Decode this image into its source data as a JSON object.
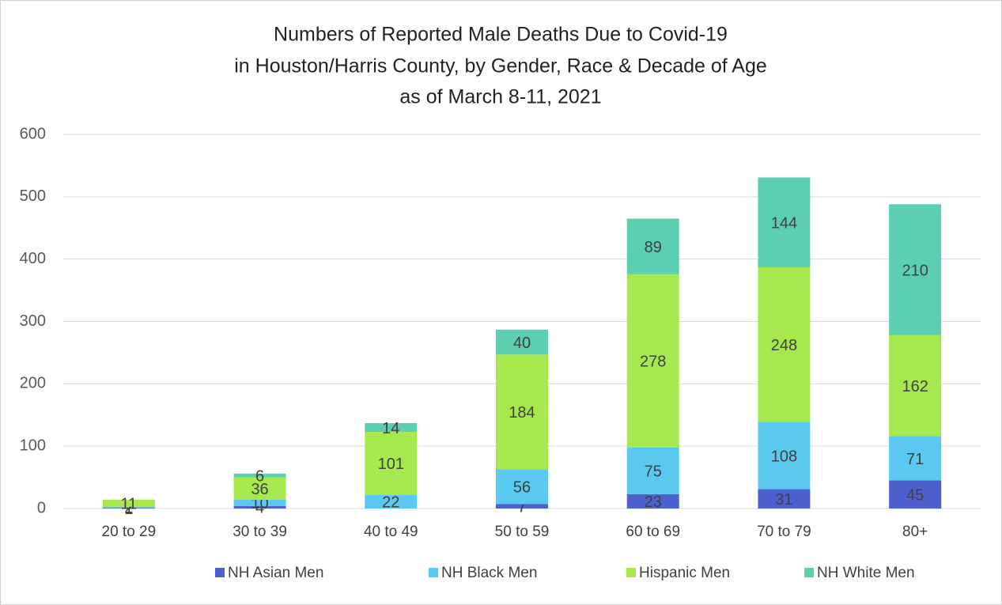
{
  "chart_data": {
    "type": "stacked_bar",
    "title": [
      "Numbers of Reported Male Deaths Due to Covid-19",
      "in Houston/Harris County, by Gender, Race & Decade of Age",
      "as of March 8-11, 2021"
    ],
    "categories": [
      "20 to 29",
      "30 to 39",
      "40 to 49",
      "50 to 59",
      "60 to 69",
      "70 to 79",
      "80+"
    ],
    "series": [
      {
        "name": "NH Asian Men",
        "color": "#4e5fd0",
        "values": [
          1,
          4,
          null,
          7,
          23,
          31,
          45
        ]
      },
      {
        "name": "NH Black Men",
        "color": "#5bc8f0",
        "values": [
          2,
          10,
          22,
          56,
          75,
          108,
          71
        ]
      },
      {
        "name": "Hispanic Men",
        "color": "#a6e84e",
        "values": [
          11,
          36,
          101,
          184,
          278,
          248,
          162
        ]
      },
      {
        "name": "NH White Men",
        "color": "#5ccfb0",
        "values": [
          null,
          6,
          14,
          40,
          89,
          144,
          210
        ]
      }
    ],
    "ylim": [
      0,
      600
    ],
    "yticks": [
      0,
      100,
      200,
      300,
      400,
      500,
      600
    ],
    "grid": true,
    "legend": "bottom"
  }
}
